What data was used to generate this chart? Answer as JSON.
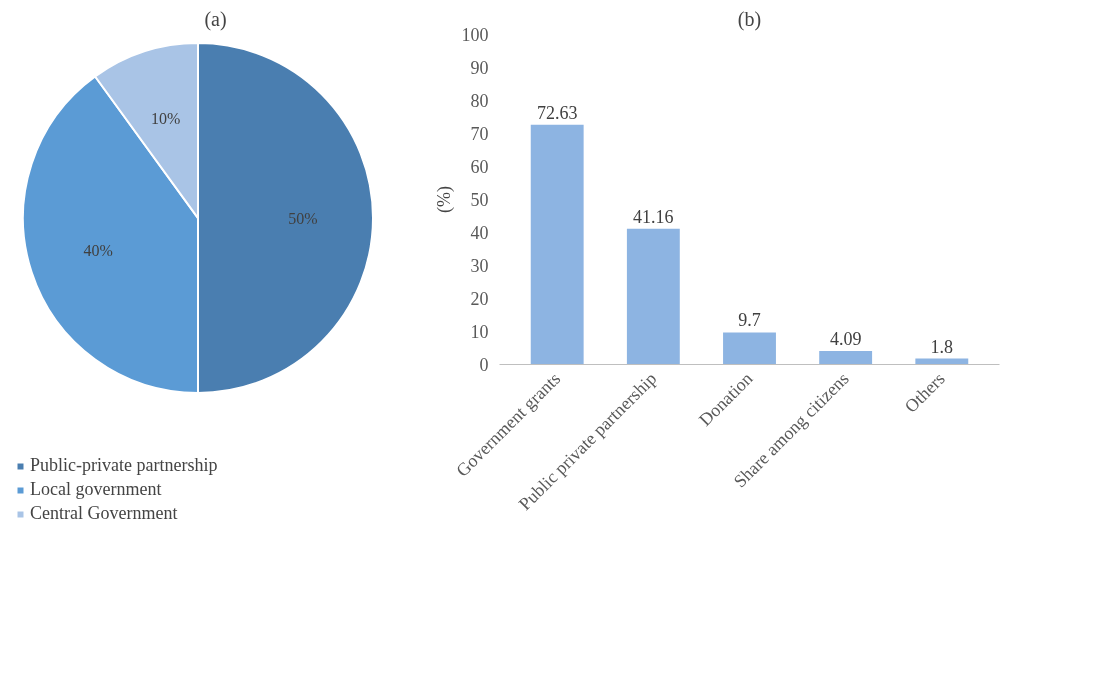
{
  "chart_data": [
    {
      "type": "pie",
      "title": "(a)",
      "categories": [
        "Public-private partnership",
        "Local government",
        "Central Government"
      ],
      "values": [
        50,
        40,
        10
      ],
      "colors": [
        "#4a7eb0",
        "#5b9bd5",
        "#a9c4e6"
      ],
      "value_labels": [
        "50%",
        "40%",
        "10%"
      ],
      "legend": "bottom"
    },
    {
      "type": "bar",
      "title": "(b)",
      "ylabel": "(%)",
      "categories": [
        "Government grants",
        "Public private partnership",
        "Donation",
        "Share among citizens",
        "Others"
      ],
      "values": [
        72.63,
        41.16,
        9.7,
        4.09,
        1.8
      ],
      "color": "#8db4e2",
      "ylim": [
        0,
        100
      ],
      "yticks": [
        0,
        10,
        20,
        30,
        40,
        50,
        60,
        70,
        80,
        90,
        100
      ],
      "data_labels": true,
      "grid": false
    }
  ]
}
